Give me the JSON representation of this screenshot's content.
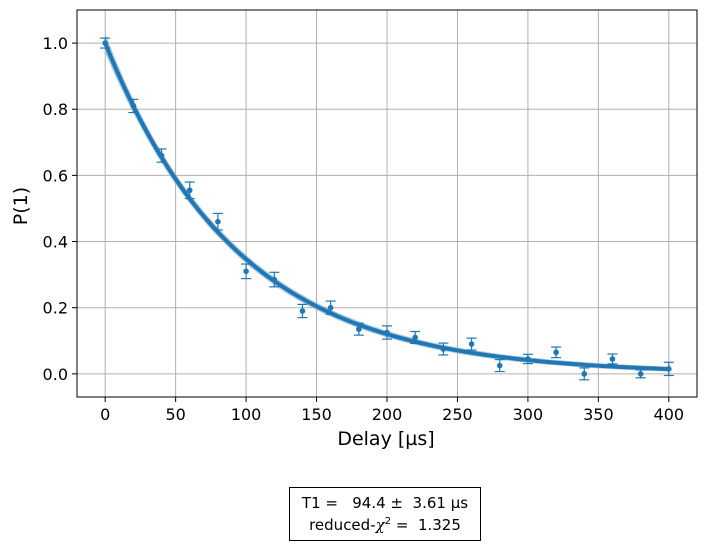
{
  "chart_data": {
    "type": "scatter",
    "title": "",
    "xlabel": "Delay [µs]",
    "ylabel": "P(1)",
    "xlim": [
      -20,
      420
    ],
    "ylim": [
      -0.07,
      1.1
    ],
    "xticks": [
      0,
      50,
      100,
      150,
      200,
      250,
      300,
      350,
      400
    ],
    "yticks": [
      0.0,
      0.2,
      0.4,
      0.6,
      0.8,
      1.0
    ],
    "ytick_labels": [
      "0.0",
      "0.2",
      "0.4",
      "0.6",
      "0.8",
      "1.0"
    ],
    "grid": true,
    "color": "#1f77b4",
    "band_color": "#8fb6da",
    "points": [
      {
        "x": 0,
        "y": 1.0,
        "err": 0.015
      },
      {
        "x": 20,
        "y": 0.81,
        "err": 0.02
      },
      {
        "x": 40,
        "y": 0.66,
        "err": 0.02
      },
      {
        "x": 60,
        "y": 0.555,
        "err": 0.025
      },
      {
        "x": 80,
        "y": 0.46,
        "err": 0.025
      },
      {
        "x": 100,
        "y": 0.31,
        "err": 0.022
      },
      {
        "x": 120,
        "y": 0.285,
        "err": 0.022
      },
      {
        "x": 140,
        "y": 0.19,
        "err": 0.02
      },
      {
        "x": 160,
        "y": 0.2,
        "err": 0.02
      },
      {
        "x": 180,
        "y": 0.135,
        "err": 0.018
      },
      {
        "x": 200,
        "y": 0.125,
        "err": 0.02
      },
      {
        "x": 220,
        "y": 0.11,
        "err": 0.018
      },
      {
        "x": 240,
        "y": 0.075,
        "err": 0.018
      },
      {
        "x": 260,
        "y": 0.09,
        "err": 0.018
      },
      {
        "x": 280,
        "y": 0.025,
        "err": 0.018
      },
      {
        "x": 300,
        "y": 0.045,
        "err": 0.014
      },
      {
        "x": 320,
        "y": 0.065,
        "err": 0.016
      },
      {
        "x": 340,
        "y": 0.0,
        "err": 0.018
      },
      {
        "x": 360,
        "y": 0.045,
        "err": 0.015
      },
      {
        "x": 380,
        "y": 0.0,
        "err": 0.012
      },
      {
        "x": 400,
        "y": 0.015,
        "err": 0.02
      }
    ],
    "fit": {
      "model": "exponential decay",
      "amplitude": 1.0,
      "t1": 94.4,
      "t1_err": 3.61,
      "band_halfwidth": 0.018
    },
    "annotation": {
      "t1_line": "T1 =   94.4 ±  3.61 µs",
      "chi_prefix": "reduced-",
      "chi_symbol": "χ",
      "chi_power": "2",
      "chi_value": " =  1.325"
    }
  }
}
